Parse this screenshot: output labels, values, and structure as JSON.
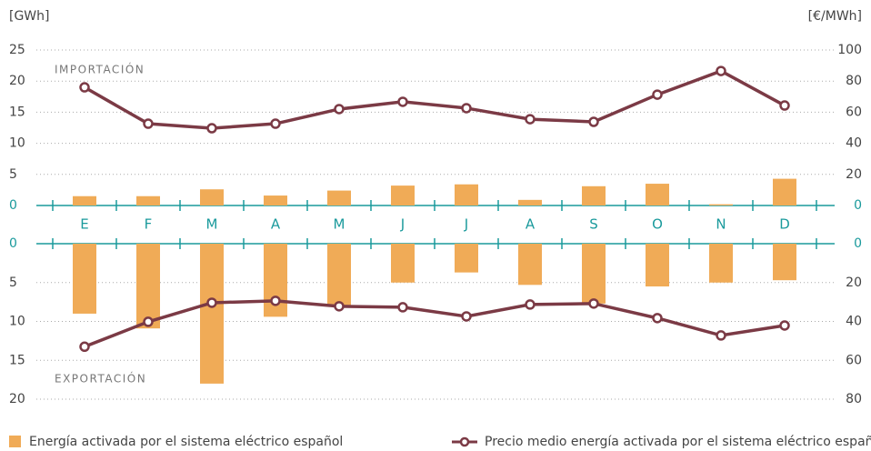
{
  "chart_data": [
    {
      "type": "bar",
      "y_label": "[GWh]",
      "y2_label": "[€/MWh]",
      "annotation": "IMPORTACIÓN",
      "categories": [
        "E",
        "F",
        "M",
        "A",
        "M",
        "J",
        "J",
        "A",
        "S",
        "O",
        "N",
        "D"
      ],
      "ylim": [
        0,
        25
      ],
      "yticks": [
        0,
        5,
        10,
        15,
        20,
        25
      ],
      "y2lim": [
        0,
        100
      ],
      "y2ticks": [
        0,
        20,
        40,
        60,
        80,
        100
      ],
      "y_inverted": false,
      "grid": true,
      "series": [
        {
          "name": "Energía activada por el sistema eléctrico español",
          "type": "bar",
          "color": "#f0ab57",
          "values": [
            1.5,
            1.5,
            2.6,
            1.6,
            2.4,
            3.2,
            3.4,
            0.9,
            3.1,
            3.5,
            0.2,
            4.3
          ]
        },
        {
          "name": "Precio medio energía activada por el sistema eléctrico español",
          "type": "line",
          "axis": "y2",
          "color": "#7b3a45",
          "values": [
            76,
            52.6,
            49.7,
            52.6,
            62,
            66.7,
            62.6,
            55.5,
            53.8,
            71.3,
            86.5,
            64.3
          ]
        }
      ]
    },
    {
      "type": "bar",
      "annotation": "EXPORTACIÓN",
      "ylim": [
        0,
        20
      ],
      "yticks": [
        0,
        5,
        10,
        15,
        20
      ],
      "y2lim": [
        0,
        80
      ],
      "y2ticks": [
        0,
        20,
        40,
        60,
        80
      ],
      "y_inverted": true,
      "grid": true,
      "series": [
        {
          "type": "bar",
          "color": "#f0ab57",
          "values": [
            9.0,
            10.9,
            18.0,
            9.4,
            8.0,
            5.0,
            3.7,
            5.3,
            7.7,
            5.5,
            5.0,
            4.7
          ]
        },
        {
          "type": "line",
          "axis": "y2",
          "color": "#7b3a45",
          "values": [
            53,
            40.2,
            30.4,
            29.4,
            32.2,
            32.7,
            37.4,
            31.3,
            30.8,
            38.3,
            47.2,
            42.1
          ]
        }
      ]
    }
  ]
}
